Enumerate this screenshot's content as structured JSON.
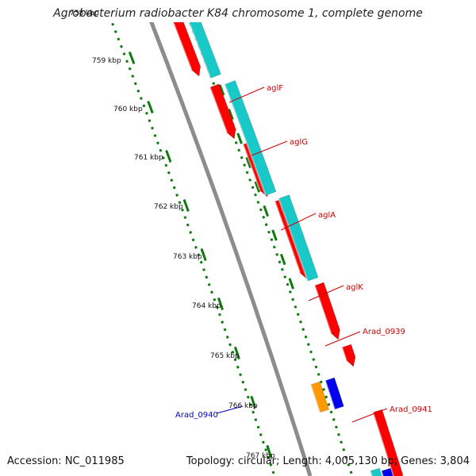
{
  "title": "Agrobacterium radiobacter K84 chromosome 1, complete genome",
  "footer": {
    "accession": "Accession: NC_011985",
    "topology": "Topology: circular; Length: 4,005,130 bp; Genes: 3,804"
  },
  "colors": {
    "backbone": "#8c8c8c",
    "ruler": "#0e7a0e",
    "red_feature": "#ff0000",
    "cyan_feature": "#19c8c8",
    "blue_feature": "#0000ee",
    "orange_feature": "#ff9900",
    "gene_label_red": "#cc0000",
    "gene_label_blue": "#0000bb"
  },
  "ruler_labels": [
    "758 kbp",
    "759 kbp",
    "760 kbp",
    "761 kbp",
    "762 kbp",
    "763 kbp",
    "764 kbp",
    "765 kbp",
    "766 kbp",
    "767 kbp"
  ],
  "gene_labels": [
    {
      "text": "aglF",
      "color": "red"
    },
    {
      "text": "aglG",
      "color": "red"
    },
    {
      "text": "aglA",
      "color": "red"
    },
    {
      "text": "aglK",
      "color": "red"
    },
    {
      "text": "Arad_0939",
      "color": "red"
    },
    {
      "text": "Arad_0941",
      "color": "red"
    },
    {
      "text": "Arad_0940",
      "color": "blue"
    }
  ]
}
